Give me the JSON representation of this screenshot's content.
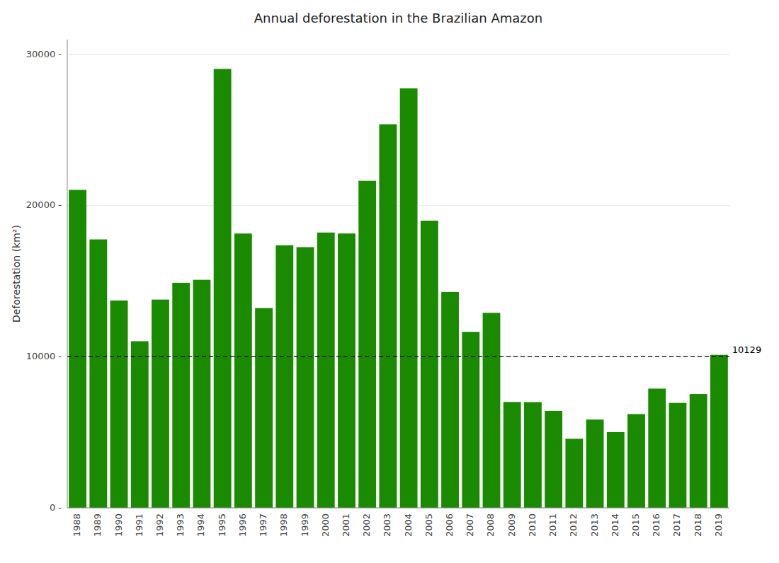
{
  "chart_data": {
    "type": "bar",
    "title": "Annual deforestation in the Brazilian Amazon",
    "y_label": "Deforestation (km²)",
    "categories": [
      "1988",
      "1989",
      "1990",
      "1991",
      "1992",
      "1993",
      "1994",
      "1995",
      "1996",
      "1997",
      "1998",
      "1999",
      "2000",
      "2001",
      "2002",
      "2003",
      "2004",
      "2005",
      "2006",
      "2007",
      "2008",
      "2009",
      "2010",
      "2011",
      "2012",
      "2013",
      "2014",
      "2015",
      "2016",
      "2017",
      "2018",
      "2019"
    ],
    "values": [
      21050,
      17770,
      13730,
      11030,
      13786,
      14896,
      15095,
      29059,
      18161,
      13227,
      17383,
      17259,
      18226,
      18165,
      21651,
      25396,
      27772,
      19014,
      14286,
      11651,
      12911,
      7008,
      7000,
      6418,
      4571,
      5843,
      5012,
      6207,
      7893,
      6947,
      7536,
      10129
    ],
    "color": "#1a8a00",
    "ylim": [
      0,
      31000
    ],
    "yticks": [
      {
        "value": 0,
        "label": "0 -"
      },
      {
        "value": 10000,
        "label": "10000 -"
      },
      {
        "value": 20000,
        "label": "20000 -"
      },
      {
        "value": 30000,
        "label": "30000 -"
      }
    ],
    "grid": true,
    "reference_lines": [
      {
        "y": 10000,
        "line_style": "dashed"
      }
    ],
    "annotations": [
      {
        "text": "10129"
      }
    ]
  }
}
